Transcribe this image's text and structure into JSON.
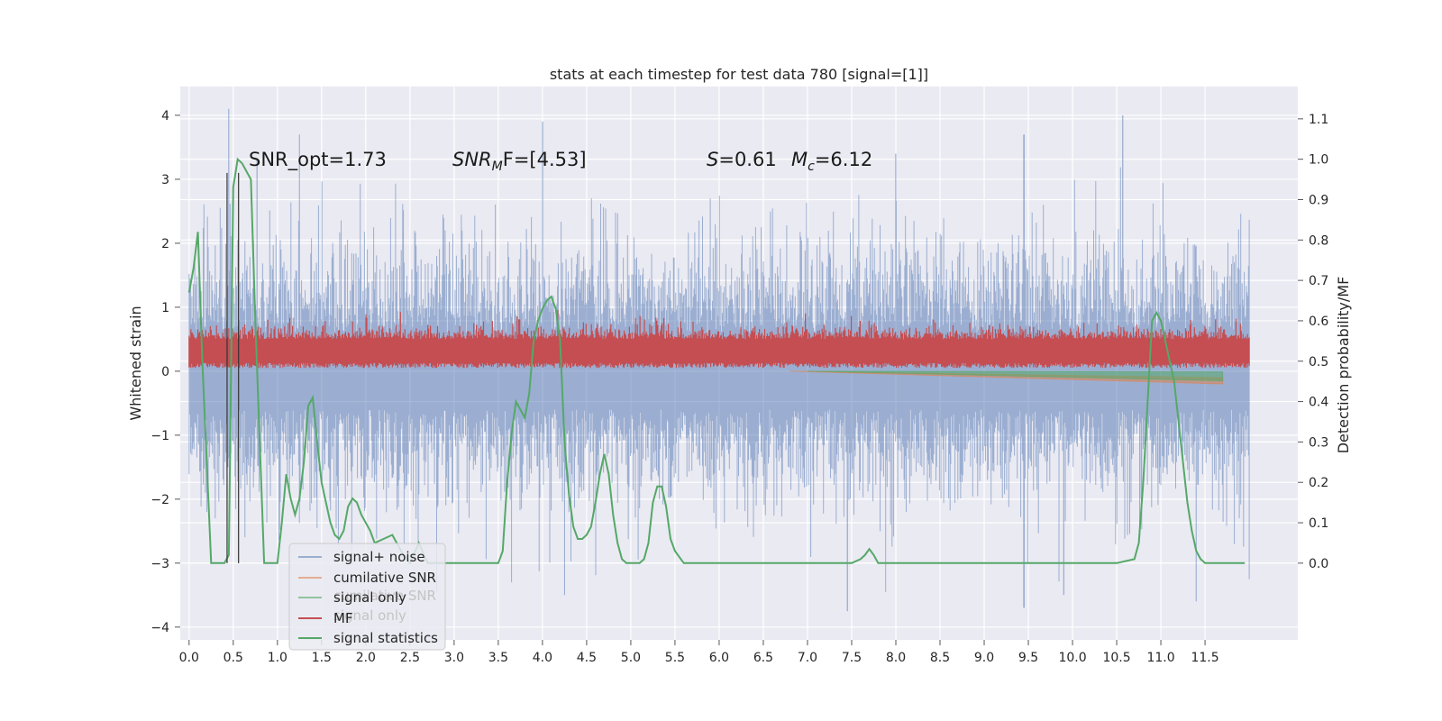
{
  "chart_data": {
    "type": "line",
    "title": "stats at each timestep for test data 780 [signal=[1]]",
    "ylabel": "Whitened strain",
    "ylabel_right": "Detection probability/MF",
    "xlim": [
      -0.1,
      12.55
    ],
    "ylim": [
      -4.2,
      4.45
    ],
    "ylim_right": [
      -0.19,
      1.18
    ],
    "x_ticks": [
      "0.0",
      "0.5",
      "1.0",
      "1.5",
      "2.0",
      "2.5",
      "3.0",
      "3.5",
      "4.0",
      "4.5",
      "5.0",
      "5.5",
      "6.0",
      "6.5",
      "7.0",
      "7.5",
      "8.0",
      "8.5",
      "9.0",
      "9.5",
      "10.0",
      "10.5",
      "11.0",
      "11.5"
    ],
    "y_ticks_left": [
      "4",
      "3",
      "2",
      "1",
      "0",
      "−1",
      "−2",
      "−3",
      "−4"
    ],
    "y_ticks_right": [
      "1.1",
      "1.0",
      "0.9",
      "0.8",
      "0.7",
      "0.6",
      "0.5",
      "0.4",
      "0.3",
      "0.2",
      "0.1",
      "0.0"
    ],
    "grid": true,
    "legend_position": "bottom-left",
    "annotations": [
      "SNR_opt=1.73",
      "SNR",
      "M",
      "F=[4.53]",
      "S",
      "=0.61",
      "M",
      "c",
      "=6.12"
    ],
    "colors": {
      "noise": "#4c72b0",
      "cumulative": "#dd8452",
      "signal_only": "#55a868",
      "mf": "#c44e52",
      "stats": "#55a868",
      "background": "#eaeaf2"
    },
    "series": [
      {
        "name": "signal+ noise",
        "kind": "noise-band",
        "x_range": [
          0.0,
          12.0
        ],
        "y_min": -3.65,
        "y_max": 4.1,
        "peaks": [
          [
            0.45,
            4.1
          ],
          [
            1.25,
            3.7
          ],
          [
            4.0,
            3.9
          ],
          [
            10.57,
            4.0
          ],
          [
            9.45,
            3.7
          ],
          [
            8.0,
            3.4
          ],
          [
            0.77,
            3.3
          ]
        ],
        "troughs": [
          [
            3.65,
            -3.3
          ],
          [
            4.25,
            -3.5
          ],
          [
            7.45,
            -3.75
          ],
          [
            9.45,
            -3.7
          ],
          [
            11.4,
            -3.6
          ],
          [
            12.0,
            -3.25
          ],
          [
            9.9,
            -3.5
          ]
        ]
      },
      {
        "name": "cumilative SNR",
        "kind": "drift",
        "x": [
          6.8,
          11.7
        ],
        "y": [
          0.0,
          -0.15
        ]
      },
      {
        "name": "signal only",
        "kind": "drift",
        "x": [
          7.0,
          11.7
        ],
        "y": [
          0.0,
          -0.08
        ]
      },
      {
        "name": "MF",
        "kind": "mf-band",
        "x_range": [
          0.0,
          12.0
        ],
        "y_min": 0.0,
        "y_max": 1.0
      },
      {
        "name": "signal statistics",
        "kind": "stats-line",
        "axis": "right",
        "x": [
          0.0,
          0.05,
          0.1,
          0.15,
          0.2,
          0.25,
          0.3,
          0.35,
          0.4,
          0.45,
          0.5,
          0.55,
          0.6,
          0.65,
          0.7,
          0.75,
          0.8,
          0.85,
          0.9,
          0.95,
          1.0,
          1.05,
          1.1,
          1.15,
          1.2,
          1.25,
          1.3,
          1.35,
          1.4,
          1.45,
          1.5,
          1.55,
          1.6,
          1.65,
          1.7,
          1.75,
          1.8,
          1.85,
          1.9,
          1.95,
          2.0,
          2.05,
          2.1,
          2.2,
          2.3,
          2.4,
          2.5,
          2.6,
          2.7,
          2.8,
          2.9,
          3.0,
          3.1,
          3.2,
          3.3,
          3.4,
          3.5,
          3.55,
          3.6,
          3.65,
          3.7,
          3.75,
          3.8,
          3.85,
          3.9,
          3.95,
          4.0,
          4.05,
          4.1,
          4.15,
          4.2,
          4.25,
          4.3,
          4.35,
          4.4,
          4.45,
          4.5,
          4.55,
          4.6,
          4.65,
          4.7,
          4.75,
          4.8,
          4.85,
          4.9,
          4.95,
          5.0,
          5.05,
          5.1,
          5.15,
          5.2,
          5.25,
          5.3,
          5.35,
          5.4,
          5.45,
          5.5,
          5.6,
          5.7,
          5.8,
          5.9,
          6.0,
          6.5,
          7.0,
          7.5,
          7.6,
          7.65,
          7.7,
          7.75,
          7.8,
          7.9,
          8.0,
          8.5,
          9.0,
          9.5,
          10.0,
          10.5,
          10.7,
          10.75,
          10.8,
          10.85,
          10.9,
          10.95,
          11.0,
          11.05,
          11.1,
          11.15,
          11.2,
          11.25,
          11.3,
          11.35,
          11.4,
          11.45,
          11.5,
          11.6,
          11.7,
          11.8,
          11.9,
          11.95
        ],
        "y": [
          0.67,
          0.73,
          0.82,
          0.5,
          0.25,
          0.0,
          0.0,
          0.0,
          0.0,
          0.02,
          0.93,
          1.0,
          0.99,
          0.97,
          0.95,
          0.6,
          0.3,
          0.0,
          0.0,
          0.0,
          0.0,
          0.1,
          0.22,
          0.16,
          0.12,
          0.16,
          0.25,
          0.39,
          0.41,
          0.3,
          0.2,
          0.15,
          0.1,
          0.07,
          0.06,
          0.08,
          0.14,
          0.16,
          0.15,
          0.12,
          0.1,
          0.08,
          0.05,
          0.06,
          0.07,
          0.03,
          0.0,
          0.05,
          0.0,
          0.0,
          0.0,
          0.0,
          0.0,
          0.0,
          0.0,
          0.0,
          0.0,
          0.03,
          0.2,
          0.32,
          0.4,
          0.38,
          0.36,
          0.42,
          0.55,
          0.6,
          0.63,
          0.65,
          0.66,
          0.63,
          0.55,
          0.3,
          0.17,
          0.09,
          0.06,
          0.06,
          0.07,
          0.09,
          0.15,
          0.22,
          0.27,
          0.22,
          0.12,
          0.05,
          0.01,
          0.0,
          0.0,
          0.0,
          0.0,
          0.01,
          0.05,
          0.15,
          0.19,
          0.19,
          0.14,
          0.06,
          0.03,
          0.0,
          0.0,
          0.0,
          0.0,
          0.0,
          0.0,
          0.0,
          0.0,
          0.01,
          0.02,
          0.035,
          0.02,
          0.0,
          0.0,
          0.0,
          0.0,
          0.0,
          0.0,
          0.0,
          0.0,
          0.01,
          0.05,
          0.2,
          0.4,
          0.6,
          0.62,
          0.6,
          0.55,
          0.5,
          0.45,
          0.35,
          0.25,
          0.15,
          0.08,
          0.03,
          0.01,
          0.0,
          0.0,
          0.0,
          0.0,
          0.0,
          0.0
        ]
      },
      {
        "name": "",
        "kind": "vline",
        "x": [
          0.43,
          0.56
        ],
        "y": [
          -3.0,
          3.1
        ]
      }
    ],
    "legend": [
      "signal+ noise",
      "cumilative SNR",
      "signal only",
      "MF",
      "signal statistics"
    ],
    "legend_ghost": [
      "cumilative SNR",
      "signal only"
    ]
  }
}
